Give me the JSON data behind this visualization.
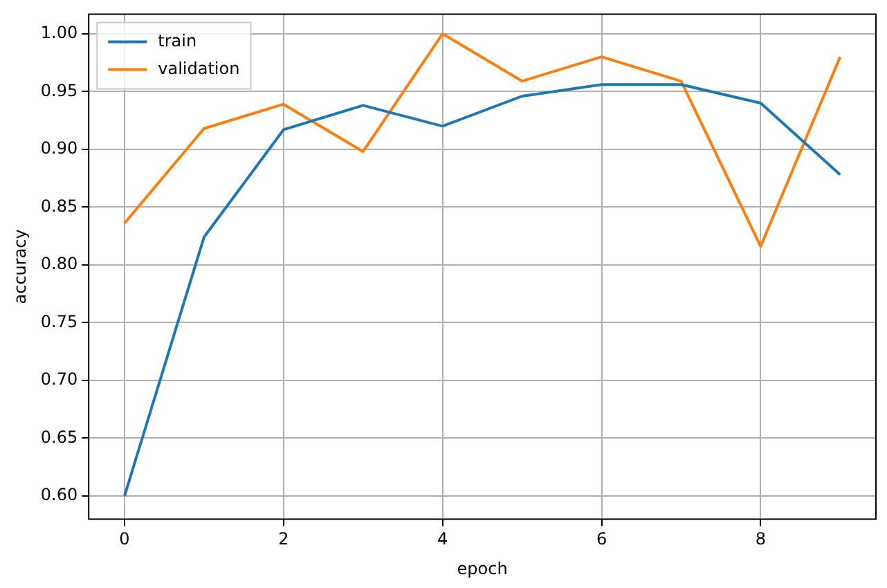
{
  "chart_data": {
    "type": "line",
    "xlabel": "epoch",
    "ylabel": "accuracy",
    "x": [
      0,
      1,
      2,
      3,
      4,
      5,
      6,
      7,
      8,
      9
    ],
    "series": [
      {
        "name": "train",
        "color": "#1f77b4",
        "values": [
          0.6,
          0.824,
          0.917,
          0.938,
          0.92,
          0.946,
          0.956,
          0.956,
          0.94,
          0.878
        ]
      },
      {
        "name": "validation",
        "color": "#ff7f0e",
        "values": [
          0.836,
          0.918,
          0.939,
          0.898,
          1.0,
          0.959,
          0.98,
          0.959,
          0.816,
          0.98
        ]
      }
    ],
    "xlim": [
      -0.45,
      9.45
    ],
    "xticks": [
      0,
      2,
      4,
      6,
      8
    ],
    "ylim": [
      0.58,
      1.017
    ],
    "yticks": [
      {
        "value": 0.6,
        "label": "0.60"
      },
      {
        "value": 0.65,
        "label": "0.65"
      },
      {
        "value": 0.7,
        "label": "0.70"
      },
      {
        "value": 0.75,
        "label": "0.75"
      },
      {
        "value": 0.8,
        "label": "0.80"
      },
      {
        "value": 0.85,
        "label": "0.85"
      },
      {
        "value": 0.9,
        "label": "0.90"
      },
      {
        "value": 0.95,
        "label": "0.95"
      },
      {
        "value": 1.0,
        "label": "1.00"
      }
    ],
    "grid": true,
    "legend": "top left",
    "marker": "none",
    "line_style": "solid"
  }
}
